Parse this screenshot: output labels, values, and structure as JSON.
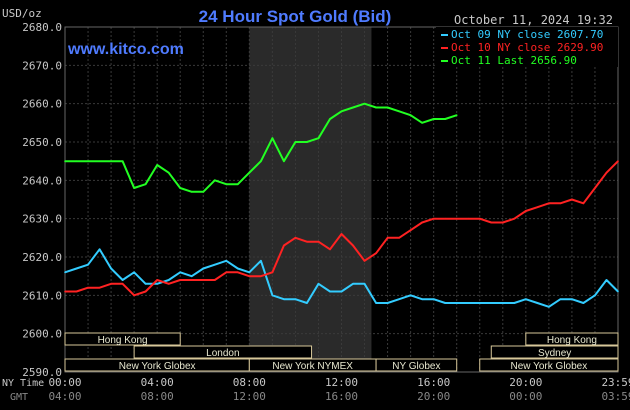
{
  "chart_data": {
    "type": "line",
    "title": "24 Hour Spot Gold (Bid)",
    "watermark": "www.kitco.com",
    "timestamp": "October 11, 2024 19:32",
    "y_unit_label": "USD/oz",
    "ylim": [
      2590,
      2680
    ],
    "y_ticks": [
      "2680.0",
      "2670.0",
      "2660.0",
      "2650.0",
      "2640.0",
      "2630.0",
      "2620.0",
      "2610.0",
      "2600.0",
      "2590.0"
    ],
    "x_label_primary": "NY Time",
    "x_label_secondary": "GMT",
    "x_ticks_ny": [
      "00:00",
      "04:00",
      "08:00",
      "12:00",
      "16:00",
      "20:00",
      "23:59"
    ],
    "x_ticks_gmt": [
      "04:00",
      "08:00",
      "12:00",
      "16:00",
      "20:00",
      "00:00",
      "03:59"
    ],
    "grid": true,
    "legend_position": "top-right",
    "colors": {
      "background": "#000000",
      "grid": "#3a3a3a",
      "axis": "#c8c8c8",
      "title": "#4f7bff",
      "oct09": "#33ccff",
      "oct10": "#ff2222",
      "oct11": "#22ff22",
      "session_band": "#2a2a2a",
      "session_box": "#d8c89a"
    },
    "legend": [
      {
        "label": "Oct 09 NY close 2607.70",
        "color": "#33ccff"
      },
      {
        "label": "Oct 10 NY close 2629.90",
        "color": "#ff2222"
      },
      {
        "label": "Oct 11 Last 2656.90",
        "color": "#22ff22"
      }
    ],
    "session_band_hours": [
      8,
      13.3
    ],
    "sessions": [
      {
        "label": "Hong Kong",
        "start": 0,
        "end": 5,
        "row": 0
      },
      {
        "label": "London",
        "start": 3,
        "end": 10.7,
        "row": 1
      },
      {
        "label": "New York Globex",
        "start": 0,
        "end": 8,
        "row": 2
      },
      {
        "label": "New York NYMEX",
        "start": 8,
        "end": 13.5,
        "row": 2
      },
      {
        "label": "NY Globex",
        "start": 13.5,
        "end": 17,
        "row": 2
      },
      {
        "label": "Hong Kong",
        "start": 20,
        "end": 24,
        "row": 0
      },
      {
        "label": "Sydney",
        "start": 18.5,
        "end": 24,
        "row": 1
      },
      {
        "label": "New York Globex",
        "start": 18,
        "end": 24,
        "row": 2
      }
    ],
    "series": [
      {
        "name": "Oct 09 NY close 2607.70",
        "x": [
          0,
          0.5,
          1,
          1.5,
          2,
          2.5,
          3,
          3.5,
          4,
          4.5,
          5,
          5.5,
          6,
          6.5,
          7,
          7.5,
          8,
          8.5,
          9,
          9.5,
          10,
          10.5,
          11,
          11.5,
          12,
          12.5,
          13,
          13.5,
          14,
          14.5,
          15,
          15.5,
          16,
          16.5,
          17,
          17.5,
          18,
          18.5,
          19,
          19.5,
          20,
          20.5,
          21,
          21.5,
          22,
          22.5,
          23,
          23.5,
          24
        ],
        "values": [
          2616,
          2617,
          2618,
          2622,
          2617,
          2614,
          2616,
          2613,
          2613,
          2614,
          2616,
          2615,
          2617,
          2618,
          2619,
          2617,
          2616,
          2619,
          2610,
          2609,
          2609,
          2608,
          2613,
          2611,
          2611,
          2613,
          2613,
          2608,
          2608,
          2609,
          2610,
          2609,
          2609,
          2608,
          2608,
          2608,
          2608,
          2608,
          2608,
          2608,
          2609,
          2608,
          2607,
          2609,
          2609,
          2608,
          2610,
          2614,
          2611
        ]
      },
      {
        "name": "Oct 10 NY close 2629.90",
        "x": [
          0,
          0.5,
          1,
          1.5,
          2,
          2.5,
          3,
          3.5,
          4,
          4.5,
          5,
          5.5,
          6,
          6.5,
          7,
          7.5,
          8,
          8.5,
          9,
          9.5,
          10,
          10.5,
          11,
          11.5,
          12,
          12.5,
          13,
          13.5,
          14,
          14.5,
          15,
          15.5,
          16,
          16.5,
          17,
          17.5,
          18,
          18.5,
          19,
          19.5,
          20,
          20.5,
          21,
          21.5,
          22,
          22.5,
          23,
          23.5,
          24
        ],
        "values": [
          2611,
          2611,
          2612,
          2612,
          2613,
          2613,
          2610,
          2611,
          2614,
          2613,
          2614,
          2614,
          2614,
          2614,
          2616,
          2616,
          2615,
          2615,
          2616,
          2623,
          2625,
          2624,
          2624,
          2622,
          2626,
          2623,
          2619,
          2621,
          2625,
          2625,
          2627,
          2629,
          2630,
          2630,
          2630,
          2630,
          2630,
          2629,
          2629,
          2630,
          2632,
          2633,
          2634,
          2634,
          2635,
          2634,
          2638,
          2642,
          2645
        ]
      },
      {
        "name": "Oct 11 Last 2656.90",
        "x": [
          0,
          0.5,
          1,
          1.5,
          2,
          2.5,
          3,
          3.5,
          4,
          4.5,
          5,
          5.5,
          6,
          6.5,
          7,
          7.5,
          8,
          8.5,
          9,
          9.5,
          10,
          10.5,
          11,
          11.5,
          12,
          12.5,
          13,
          13.5,
          14,
          14.5,
          15,
          15.5,
          16,
          16.5,
          17
        ],
        "values": [
          2645,
          2645,
          2645,
          2645,
          2645,
          2645,
          2638,
          2639,
          2644,
          2642,
          2638,
          2637,
          2637,
          2640,
          2639,
          2639,
          2642,
          2645,
          2651,
          2645,
          2650,
          2650,
          2651,
          2656,
          2658,
          2659,
          2660,
          2659,
          2659,
          2658,
          2657,
          2655,
          2656,
          2656,
          2657
        ]
      }
    ]
  }
}
